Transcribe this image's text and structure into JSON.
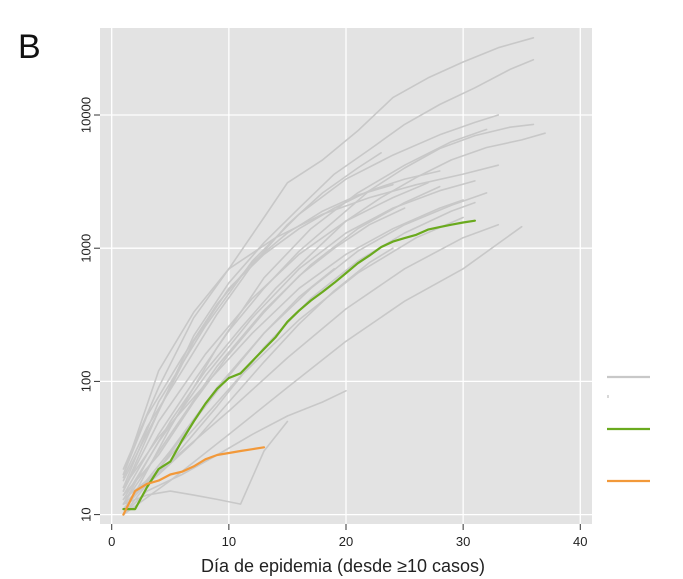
{
  "panel_label": "B",
  "colors": {
    "panel_bg": "#e3e3e3",
    "grid": "#ffffff",
    "other_countries": "#c8c8c8",
    "highlight_green": "#6aaa1e",
    "highlight_orange": "#f2993a"
  },
  "chart_data": {
    "type": "line",
    "title": "",
    "xlabel": "Día de epidemia (desde ≥10 casos)",
    "ylabel": "",
    "xlim": [
      -1,
      41
    ],
    "ylim": [
      8.5,
      45000
    ],
    "y_scale": "log",
    "grid": true,
    "x_ticks": [
      0,
      10,
      20,
      30,
      40
    ],
    "x_tick_labels": [
      "0",
      "10",
      "20",
      "30",
      "40"
    ],
    "y_ticks": [
      10,
      100,
      1000,
      10000
    ],
    "y_tick_labels": [
      "10",
      "100",
      "1000",
      "10000"
    ],
    "legend": {
      "position": "right",
      "entries": [
        {
          "label": "",
          "color": "#c8c8c8"
        },
        {
          "label": "",
          "color": "#6aaa1e"
        },
        {
          "label": "",
          "color": "#f2993a"
        }
      ]
    },
    "series": [
      {
        "color": "#6aaa1e",
        "width": 2.2,
        "x": [
          1,
          2,
          3,
          4,
          5,
          6,
          7,
          8,
          9,
          10,
          11,
          12,
          13,
          14,
          15,
          16,
          17,
          18,
          19,
          20,
          21,
          22,
          23,
          24,
          25,
          26,
          27,
          28,
          29,
          30,
          31
        ],
        "y": [
          11,
          11,
          16,
          22,
          25,
          36,
          50,
          68,
          88,
          106,
          115,
          142,
          175,
          215,
          280,
          340,
          405,
          470,
          550,
          650,
          770,
          880,
          1020,
          1120,
          1190,
          1260,
          1380,
          1440,
          1500,
          1560,
          1610
        ]
      },
      {
        "color": "#f2993a",
        "width": 2.2,
        "x": [
          1,
          2,
          3,
          4,
          5,
          6,
          7,
          8,
          9,
          10,
          11,
          12,
          13
        ],
        "y": [
          10,
          15,
          17,
          18,
          20,
          21,
          23,
          26,
          28,
          29,
          30,
          31,
          32
        ]
      },
      {
        "color": "#c8c8c8",
        "width": 1.6,
        "x": [
          1,
          4,
          7,
          10,
          13,
          15,
          18,
          21,
          24,
          27,
          30,
          33,
          36
        ],
        "y": [
          20,
          120,
          330,
          700,
          1700,
          3100,
          4600,
          7600,
          13500,
          19000,
          25000,
          32000,
          38000
        ]
      },
      {
        "color": "#c8c8c8",
        "width": 1.6,
        "x": [
          1,
          4,
          7,
          10,
          13,
          16,
          19,
          22,
          25,
          28,
          31,
          34,
          36
        ],
        "y": [
          15,
          60,
          220,
          550,
          1100,
          2000,
          3600,
          5500,
          8500,
          12000,
          16000,
          22000,
          26000
        ]
      },
      {
        "color": "#c8c8c8",
        "width": 1.6,
        "x": [
          1,
          3,
          5,
          8,
          11,
          14,
          17,
          20,
          23,
          26,
          29,
          32,
          35,
          37
        ],
        "y": [
          12,
          25,
          50,
          120,
          250,
          500,
          900,
          1600,
          2400,
          3400,
          4600,
          5700,
          6500,
          7300
        ]
      },
      {
        "color": "#c8c8c8",
        "width": 1.6,
        "x": [
          1,
          4,
          7,
          10,
          13,
          16,
          19,
          22,
          25,
          28,
          31,
          34,
          36
        ],
        "y": [
          14,
          40,
          100,
          240,
          500,
          950,
          1600,
          2700,
          4000,
          5600,
          7000,
          8100,
          8500
        ]
      },
      {
        "color": "#c8c8c8",
        "width": 1.6,
        "x": [
          1,
          4,
          8,
          12,
          16,
          20,
          24,
          28,
          31,
          33
        ],
        "y": [
          16,
          70,
          260,
          800,
          1800,
          3300,
          5000,
          7100,
          8800,
          10000
        ]
      },
      {
        "color": "#c8c8c8",
        "width": 1.6,
        "x": [
          1,
          5,
          9,
          13,
          17,
          21,
          25,
          29,
          32
        ],
        "y": [
          10,
          45,
          180,
          600,
          1400,
          2600,
          4200,
          6300,
          7800
        ]
      },
      {
        "color": "#c8c8c8",
        "width": 1.6,
        "x": [
          1,
          4,
          7,
          10,
          14,
          18,
          22,
          26,
          30,
          33
        ],
        "y": [
          22,
          90,
          300,
          700,
          1200,
          1800,
          2400,
          3000,
          3600,
          4200
        ]
      },
      {
        "color": "#c8c8c8",
        "width": 1.6,
        "x": [
          1,
          5,
          9,
          13,
          17,
          21,
          25,
          29,
          32
        ],
        "y": [
          11,
          30,
          90,
          230,
          500,
          950,
          1500,
          2100,
          2600
        ]
      },
      {
        "color": "#c8c8c8",
        "width": 1.6,
        "x": [
          1,
          4,
          8,
          12,
          16,
          20,
          24,
          28,
          31
        ],
        "y": [
          13,
          35,
          110,
          300,
          700,
          1300,
          2000,
          2700,
          3200
        ]
      },
      {
        "color": "#c8c8c8",
        "width": 1.6,
        "x": [
          1,
          5,
          9,
          13,
          17,
          21,
          25,
          29,
          31
        ],
        "y": [
          12,
          25,
          65,
          180,
          420,
          800,
          1300,
          1900,
          2200
        ]
      },
      {
        "color": "#c8c8c8",
        "width": 1.6,
        "x": [
          1,
          5,
          10,
          15,
          20,
          25,
          30,
          35
        ],
        "y": [
          10,
          18,
          40,
          90,
          200,
          400,
          700,
          1450
        ]
      },
      {
        "color": "#c8c8c8",
        "width": 1.6,
        "x": [
          1,
          3,
          6,
          9,
          12,
          15,
          18,
          20
        ],
        "y": [
          10,
          15,
          20,
          28,
          40,
          55,
          70,
          85
        ]
      },
      {
        "color": "#c8c8c8",
        "width": 1.6,
        "x": [
          1,
          4,
          7,
          10,
          13,
          16,
          19,
          22,
          25,
          28
        ],
        "y": [
          18,
          60,
          200,
          500,
          900,
          1400,
          2000,
          2700,
          3300,
          3800
        ]
      },
      {
        "color": "#c8c8c8",
        "width": 1.6,
        "x": [
          1,
          4,
          8,
          12,
          16,
          20,
          24,
          27
        ],
        "y": [
          15,
          50,
          160,
          420,
          900,
          1600,
          2400,
          3100
        ]
      },
      {
        "color": "#c8c8c8",
        "width": 1.6,
        "x": [
          1,
          5,
          9,
          13,
          17,
          21,
          25,
          28
        ],
        "y": [
          12,
          40,
          130,
          340,
          750,
          1400,
          2200,
          2900
        ]
      },
      {
        "color": "#c8c8c8",
        "width": 1.6,
        "x": [
          1,
          6,
          11,
          16,
          21,
          26,
          30
        ],
        "y": [
          11,
          35,
          110,
          290,
          650,
          1200,
          1700
        ]
      },
      {
        "color": "#c8c8c8",
        "width": 1.6,
        "x": [
          1,
          3,
          6,
          9,
          12,
          15,
          18,
          21,
          24
        ],
        "y": [
          20,
          55,
          150,
          380,
          780,
          1300,
          1900,
          2500,
          3000
        ]
      },
      {
        "color": "#c8c8c8",
        "width": 1.6,
        "x": [
          1,
          4,
          7,
          10,
          13,
          16,
          19,
          22,
          25
        ],
        "y": [
          14,
          28,
          70,
          160,
          330,
          620,
          1000,
          1500,
          2000
        ]
      },
      {
        "color": "#c8c8c8",
        "width": 1.6,
        "x": [
          1,
          5,
          10,
          15,
          20,
          25,
          30,
          33
        ],
        "y": [
          13,
          25,
          60,
          150,
          350,
          700,
          1200,
          1500
        ]
      },
      {
        "color": "#c8c8c8",
        "width": 1.6,
        "x": [
          1,
          4,
          8,
          12,
          16,
          20,
          24,
          28,
          30
        ],
        "y": [
          16,
          38,
          95,
          230,
          500,
          900,
          1400,
          2000,
          2300
        ]
      },
      {
        "color": "#c8c8c8",
        "width": 1.6,
        "x": [
          1,
          3,
          5,
          7,
          9,
          11,
          13,
          15
        ],
        "y": [
          12,
          14,
          15,
          14,
          13,
          12,
          30,
          50
        ]
      },
      {
        "color": "#c8c8c8",
        "width": 1.6,
        "x": [
          1,
          4,
          7,
          10,
          13,
          16,
          19
        ],
        "y": [
          10,
          22,
          50,
          110,
          230,
          430,
          700
        ]
      },
      {
        "color": "#c8c8c8",
        "width": 1.6,
        "x": [
          1,
          4,
          7,
          10,
          13,
          16,
          19,
          22,
          24
        ],
        "y": [
          12,
          20,
          35,
          70,
          140,
          270,
          480,
          780,
          1000
        ]
      },
      {
        "color": "#c8c8c8",
        "width": 1.6,
        "x": [
          1,
          3,
          6,
          9,
          12,
          15,
          18,
          21,
          23
        ],
        "y": [
          19,
          45,
          120,
          320,
          750,
          1500,
          2600,
          4000,
          5200
        ]
      }
    ]
  }
}
